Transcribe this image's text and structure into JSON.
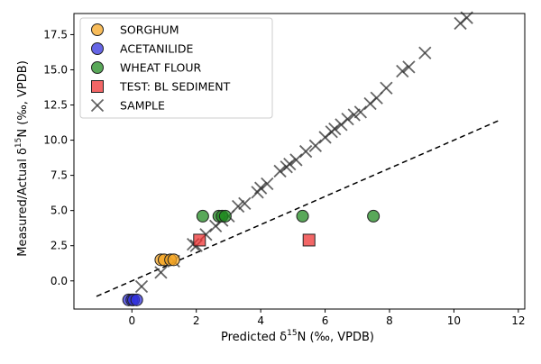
{
  "chart_data": {
    "type": "scatter",
    "xlabel_main": "Predicted δ",
    "xlabel_sup": "15",
    "xlabel_rest": "N (‰, VPDB)",
    "ylabel_main": "Measured/Actual δ",
    "ylabel_sup": "15",
    "ylabel_rest": "N (‰, VPDB)",
    "xlim": [
      -1.8,
      12.2
    ],
    "ylim": [
      -2.0,
      19.0
    ],
    "x_ticks": [
      0,
      2,
      4,
      6,
      8,
      10,
      12
    ],
    "y_ticks": [
      0.0,
      2.5,
      5.0,
      7.5,
      10.0,
      12.5,
      15.0,
      17.5
    ],
    "x_tick_labels": [
      "0",
      "2",
      "4",
      "6",
      "8",
      "10",
      "12"
    ],
    "y_tick_labels": [
      "0.0",
      "2.5",
      "5.0",
      "7.5",
      "10.0",
      "12.5",
      "15.0",
      "17.5"
    ],
    "grid": false,
    "legend_position": "top-left",
    "reference_line": {
      "style": "dashed",
      "color": "#000000",
      "x": [
        -1.1,
        11.4
      ],
      "y": [
        -1.1,
        11.4
      ]
    },
    "series": [
      {
        "name": "SORGHUM",
        "marker": "circle",
        "color": "#f5a623",
        "points": [
          [
            0.9,
            1.5
          ],
          [
            1.0,
            1.5
          ],
          [
            1.2,
            1.5
          ],
          [
            1.3,
            1.5
          ]
        ]
      },
      {
        "name": "ACETANILIDE",
        "marker": "circle",
        "color": "#3333dd",
        "points": [
          [
            -0.1,
            -1.35
          ],
          [
            0.0,
            -1.35
          ],
          [
            0.05,
            -1.35
          ],
          [
            0.15,
            -1.35
          ]
        ]
      },
      {
        "name": "WHEAT FLOUR",
        "marker": "circle",
        "color": "#228b22",
        "points": [
          [
            2.2,
            4.6
          ],
          [
            2.7,
            4.6
          ],
          [
            2.8,
            4.6
          ],
          [
            2.9,
            4.6
          ],
          [
            5.3,
            4.6
          ],
          [
            7.5,
            4.6
          ]
        ]
      },
      {
        "name": "TEST: BL SEDIMENT",
        "marker": "square",
        "color": "#ee3333",
        "points": [
          [
            2.1,
            2.9
          ],
          [
            5.5,
            2.9
          ]
        ]
      },
      {
        "name": "SAMPLE",
        "marker": "x",
        "color": "#333333",
        "points": [
          [
            0.3,
            -0.4
          ],
          [
            0.9,
            0.6
          ],
          [
            1.3,
            1.4
          ],
          [
            1.9,
            2.6
          ],
          [
            2.0,
            2.5
          ],
          [
            2.3,
            3.3
          ],
          [
            2.6,
            3.9
          ],
          [
            2.8,
            4.3
          ],
          [
            3.0,
            4.6
          ],
          [
            3.3,
            5.3
          ],
          [
            3.5,
            5.5
          ],
          [
            3.9,
            6.3
          ],
          [
            4.0,
            6.6
          ],
          [
            4.2,
            6.9
          ],
          [
            4.6,
            7.8
          ],
          [
            4.8,
            8.1
          ],
          [
            4.9,
            8.3
          ],
          [
            5.1,
            8.6
          ],
          [
            5.4,
            9.2
          ],
          [
            5.7,
            9.6
          ],
          [
            6.0,
            10.2
          ],
          [
            6.2,
            10.6
          ],
          [
            6.3,
            10.8
          ],
          [
            6.5,
            11.1
          ],
          [
            6.7,
            11.5
          ],
          [
            6.9,
            11.8
          ],
          [
            7.1,
            12.0
          ],
          [
            7.4,
            12.6
          ],
          [
            7.6,
            13.0
          ],
          [
            7.9,
            13.7
          ],
          [
            8.4,
            14.9
          ],
          [
            8.6,
            15.2
          ],
          [
            9.1,
            16.2
          ],
          [
            10.2,
            18.3
          ],
          [
            10.4,
            18.7
          ]
        ]
      }
    ]
  }
}
